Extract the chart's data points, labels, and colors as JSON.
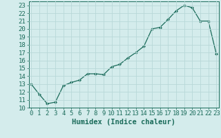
{
  "title": "",
  "xlabel": "Humidex (Indice chaleur)",
  "x": [
    0,
    1,
    2,
    3,
    4,
    5,
    6,
    7,
    8,
    9,
    10,
    11,
    12,
    13,
    14,
    15,
    16,
    17,
    18,
    19,
    20,
    21,
    22,
    23
  ],
  "y": [
    13.0,
    11.7,
    10.5,
    10.7,
    12.8,
    13.2,
    13.5,
    14.3,
    14.3,
    14.2,
    15.2,
    15.5,
    16.3,
    17.0,
    17.8,
    20.0,
    20.2,
    21.2,
    22.3,
    23.0,
    22.7,
    21.0,
    21.0,
    16.8
  ],
  "line_color": "#1a6b5a",
  "marker": "D",
  "marker_size": 2.0,
  "line_width": 0.9,
  "bg_color": "#d4ecec",
  "grid_color": "#b8d8d8",
  "tick_color": "#1a6b5a",
  "label_color": "#1a6b5a",
  "xlim": [
    -0.3,
    23.3
  ],
  "ylim": [
    10,
    23.5
  ],
  "yticks": [
    10,
    11,
    12,
    13,
    14,
    15,
    16,
    17,
    18,
    19,
    20,
    21,
    22,
    23
  ],
  "xticks": [
    0,
    1,
    2,
    3,
    4,
    5,
    6,
    7,
    8,
    9,
    10,
    11,
    12,
    13,
    14,
    15,
    16,
    17,
    18,
    19,
    20,
    21,
    22,
    23
  ],
  "font_size": 6.5,
  "xlabel_fontsize": 7.5
}
